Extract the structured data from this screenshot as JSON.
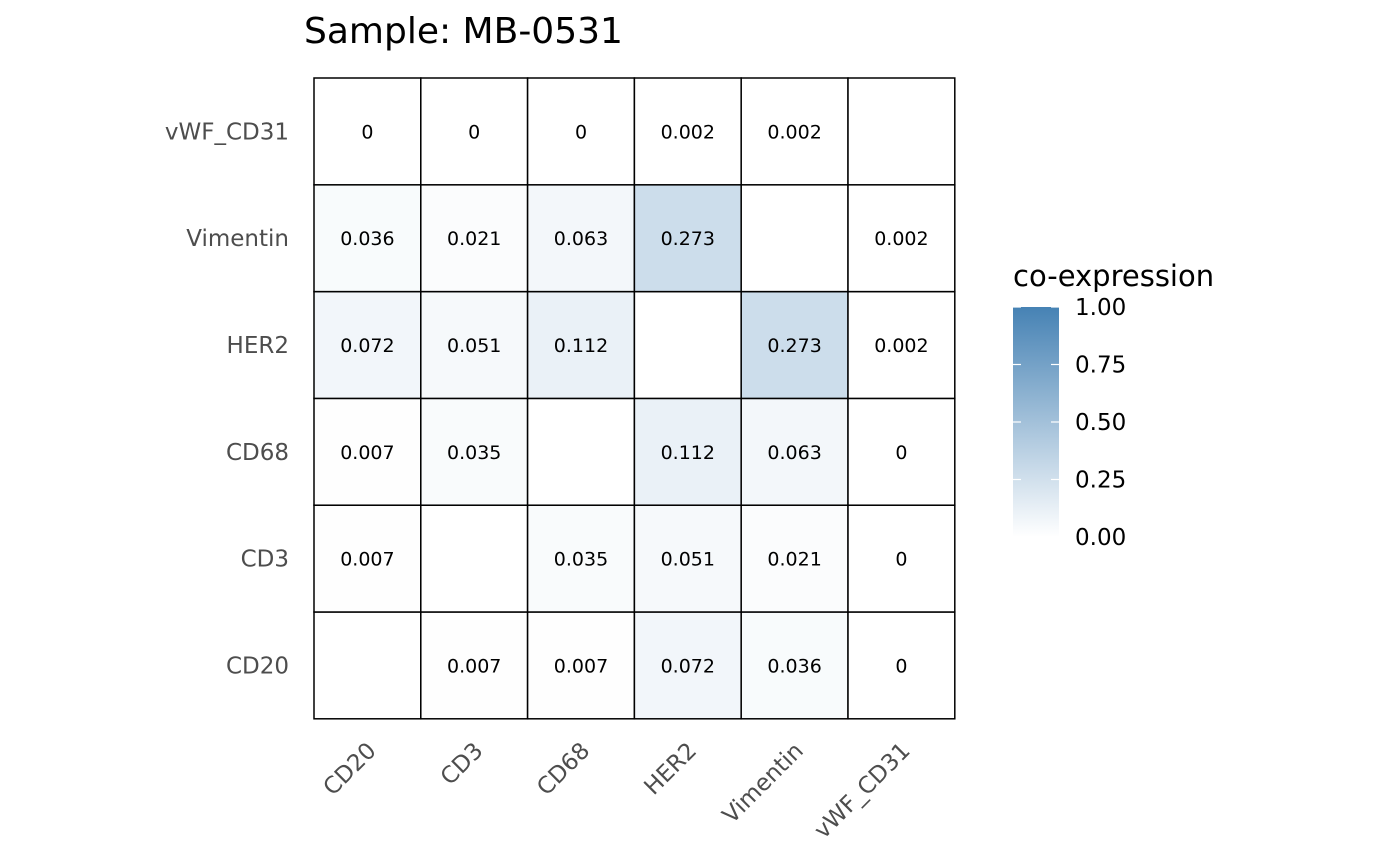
{
  "chart_data": {
    "type": "heatmap",
    "title": "Sample: MB-0531",
    "xlabel": "",
    "ylabel": "",
    "x_categories": [
      "CD20",
      "CD3",
      "CD68",
      "HER2",
      "Vimentin",
      "vWF_CD31"
    ],
    "y_categories": [
      "CD20",
      "CD3",
      "CD68",
      "HER2",
      "Vimentin",
      "vWF_CD31"
    ],
    "values": [
      [
        null,
        0.007,
        0.007,
        0.072,
        0.036,
        0
      ],
      [
        0.007,
        null,
        0.035,
        0.051,
        0.021,
        0
      ],
      [
        0.007,
        0.035,
        null,
        0.112,
        0.063,
        0
      ],
      [
        0.072,
        0.051,
        0.112,
        null,
        0.273,
        0.002
      ],
      [
        0.036,
        0.021,
        0.063,
        0.273,
        null,
        0.002
      ],
      [
        0,
        0,
        0,
        0.002,
        0.002,
        null
      ]
    ],
    "legend": {
      "title": "co-expression",
      "range": [
        0,
        1
      ],
      "ticks": [
        "0.00",
        "0.25",
        "0.50",
        "0.75",
        "1.00"
      ],
      "low_color": "#ffffff",
      "high_color": "#4682b4",
      "placement": "right"
    },
    "grid": false
  }
}
